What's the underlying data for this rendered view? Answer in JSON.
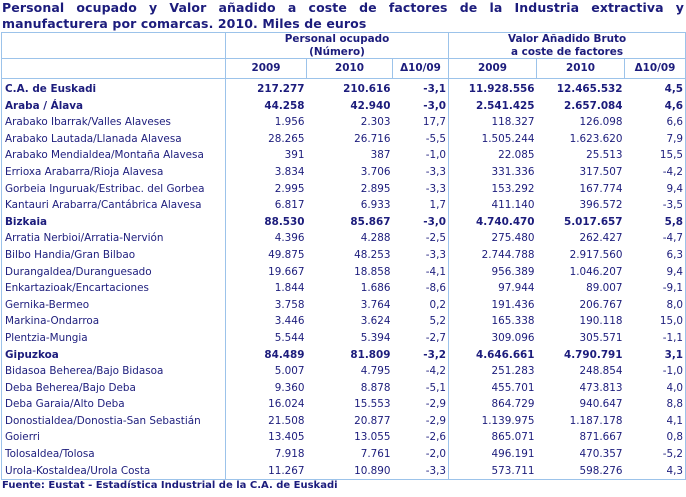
{
  "title": "Personal ocupado y Valor añadido a coste de factores de la Industria extractiva y manufacturera por comarcas. 2010. Miles de euros",
  "header": {
    "group1_line1": "Personal ocupado",
    "group1_line2": "(Número)",
    "group2_line1": "Valor Añadido Bruto",
    "group2_line2": "a coste de factores",
    "cols": [
      "2009",
      "2010",
      "Δ10/09",
      "2009",
      "2010",
      "Δ10/09"
    ]
  },
  "rows": [
    {
      "label": "C.A. de Euskadi",
      "bold": true,
      "v": [
        "217.277",
        "210.616",
        "-3,1",
        "11.928.556",
        "12.465.532",
        "4,5"
      ]
    },
    {
      "label": "Araba / Álava",
      "bold": true,
      "v": [
        "44.258",
        "42.940",
        "-3,0",
        "2.541.425",
        "2.657.084",
        "4,6"
      ]
    },
    {
      "label": "Arabako Ibarrak/Valles Alaveses",
      "v": [
        "1.956",
        "2.303",
        "17,7",
        "118.327",
        "126.098",
        "6,6"
      ]
    },
    {
      "label": "Arabako Lautada/Llanada Alavesa",
      "v": [
        "28.265",
        "26.716",
        "-5,5",
        "1.505.244",
        "1.623.620",
        "7,9"
      ]
    },
    {
      "label": "Arabako Mendialdea/Montaña Alavesa",
      "v": [
        "391",
        "387",
        "-1,0",
        "22.085",
        "25.513",
        "15,5"
      ]
    },
    {
      "label": "Errioxa Arabarra/Rioja Alavesa",
      "v": [
        "3.834",
        "3.706",
        "-3,3",
        "331.336",
        "317.507",
        "-4,2"
      ]
    },
    {
      "label": "Gorbeia Inguruak/Estribac. del Gorbea",
      "v": [
        "2.995",
        "2.895",
        "-3,3",
        "153.292",
        "167.774",
        "9,4"
      ]
    },
    {
      "label": "Kantauri Arabarra/Cantábrica Alavesa",
      "v": [
        "6.817",
        "6.933",
        "1,7",
        "411.140",
        "396.572",
        "-3,5"
      ]
    },
    {
      "label": "Bizkaia",
      "bold": true,
      "v": [
        "88.530",
        "85.867",
        "-3,0",
        "4.740.470",
        "5.017.657",
        "5,8"
      ]
    },
    {
      "label": "Arratia Nerbioi/Arratia-Nervión",
      "v": [
        "4.396",
        "4.288",
        "-2,5",
        "275.480",
        "262.427",
        "-4,7"
      ]
    },
    {
      "label": "Bilbo Handia/Gran Bilbao",
      "v": [
        "49.875",
        "48.253",
        "-3,3",
        "2.744.788",
        "2.917.560",
        "6,3"
      ]
    },
    {
      "label": "Durangaldea/Duranguesado",
      "v": [
        "19.667",
        "18.858",
        "-4,1",
        "956.389",
        "1.046.207",
        "9,4"
      ]
    },
    {
      "label": "Enkartazioak/Encartaciones",
      "v": [
        "1.844",
        "1.686",
        "-8,6",
        "97.944",
        "89.007",
        "-9,1"
      ]
    },
    {
      "label": "Gernika-Bermeo",
      "v": [
        "3.758",
        "3.764",
        "0,2",
        "191.436",
        "206.767",
        "8,0"
      ]
    },
    {
      "label": "Markina-Ondarroa",
      "v": [
        "3.446",
        "3.624",
        "5,2",
        "165.338",
        "190.118",
        "15,0"
      ]
    },
    {
      "label": "Plentzia-Mungia",
      "v": [
        "5.544",
        "5.394",
        "-2,7",
        "309.096",
        "305.571",
        "-1,1"
      ]
    },
    {
      "label": "Gipuzkoa",
      "bold": true,
      "v": [
        "84.489",
        "81.809",
        "-3,2",
        "4.646.661",
        "4.790.791",
        "3,1"
      ]
    },
    {
      "label": "Bidasoa Beherea/Bajo Bidasoa",
      "v": [
        "5.007",
        "4.795",
        "-4,2",
        "251.283",
        "248.854",
        "-1,0"
      ]
    },
    {
      "label": "Deba Beherea/Bajo Deba",
      "v": [
        "9.360",
        "8.878",
        "-5,1",
        "455.701",
        "473.813",
        "4,0"
      ]
    },
    {
      "label": "Deba Garaia/Alto Deba",
      "v": [
        "16.024",
        "15.553",
        "-2,9",
        "864.729",
        "940.647",
        "8,8"
      ]
    },
    {
      "label": "Donostialdea/Donostia-San Sebastián",
      "v": [
        "21.508",
        "20.877",
        "-2,9",
        "1.139.975",
        "1.187.178",
        "4,1"
      ]
    },
    {
      "label": "Goierri",
      "v": [
        "13.405",
        "13.055",
        "-2,6",
        "865.071",
        "871.667",
        "0,8"
      ]
    },
    {
      "label": "Tolosaldea/Tolosa",
      "v": [
        "7.918",
        "7.761",
        "-2,0",
        "496.191",
        "470.357",
        "-5,2"
      ]
    },
    {
      "label": "Urola-Kostaldea/Urola Costa",
      "v": [
        "11.267",
        "10.890",
        "-3,3",
        "573.711",
        "598.276",
        "4,3"
      ]
    }
  ],
  "source": "Fuente: Eustat - Estadística Industrial de la C.A. de Euskadi"
}
